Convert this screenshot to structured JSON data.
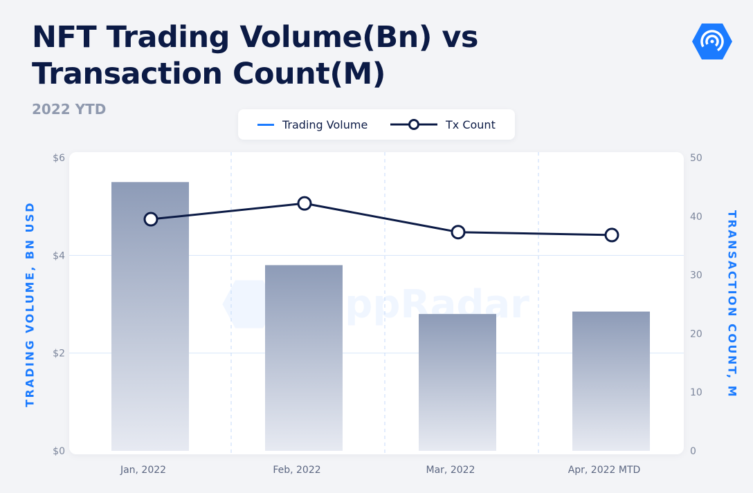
{
  "header": {
    "title_line1": "NFT Trading Volume(Bn) vs",
    "title_line2": "Transaction Count(M)",
    "subtitle": "2022 YTD"
  },
  "legend": {
    "bar_label": "Trading Volume",
    "line_label": "Tx Count"
  },
  "watermark": "DappRadar",
  "colors": {
    "title": "#0b1a45",
    "accent": "#1b7bff",
    "bar_top": "#8f9db8",
    "bar_bottom": "#e6e9f1",
    "line": "#0b1a45"
  },
  "chart_data": {
    "type": "bar",
    "categories": [
      "Jan, 2022",
      "Feb, 2022",
      "Mar, 2022",
      "Apr, 2022 MTD"
    ],
    "series": [
      {
        "name": "Trading Volume",
        "type": "bar",
        "axis": "left",
        "values": [
          5.5,
          3.8,
          2.8,
          2.85
        ]
      },
      {
        "name": "Tx Count",
        "type": "line",
        "axis": "right",
        "values": [
          39.5,
          42.2,
          37.3,
          36.8
        ]
      }
    ],
    "ylabel": "TRADING VOLUME, BN USD",
    "y2label": "TRANSACTION COUNT, M",
    "ylim": [
      0,
      6
    ],
    "y2lim": [
      0,
      50
    ],
    "yticks": [
      0,
      2,
      4,
      6
    ],
    "ytick_labels": [
      "$0",
      "$2",
      "$4",
      "$6"
    ],
    "y2ticks": [
      0,
      10,
      20,
      30,
      40,
      50
    ],
    "y2tick_labels": [
      "0",
      "10",
      "20",
      "30",
      "40",
      "50"
    ],
    "grid": true,
    "legend_position": "top-center"
  }
}
